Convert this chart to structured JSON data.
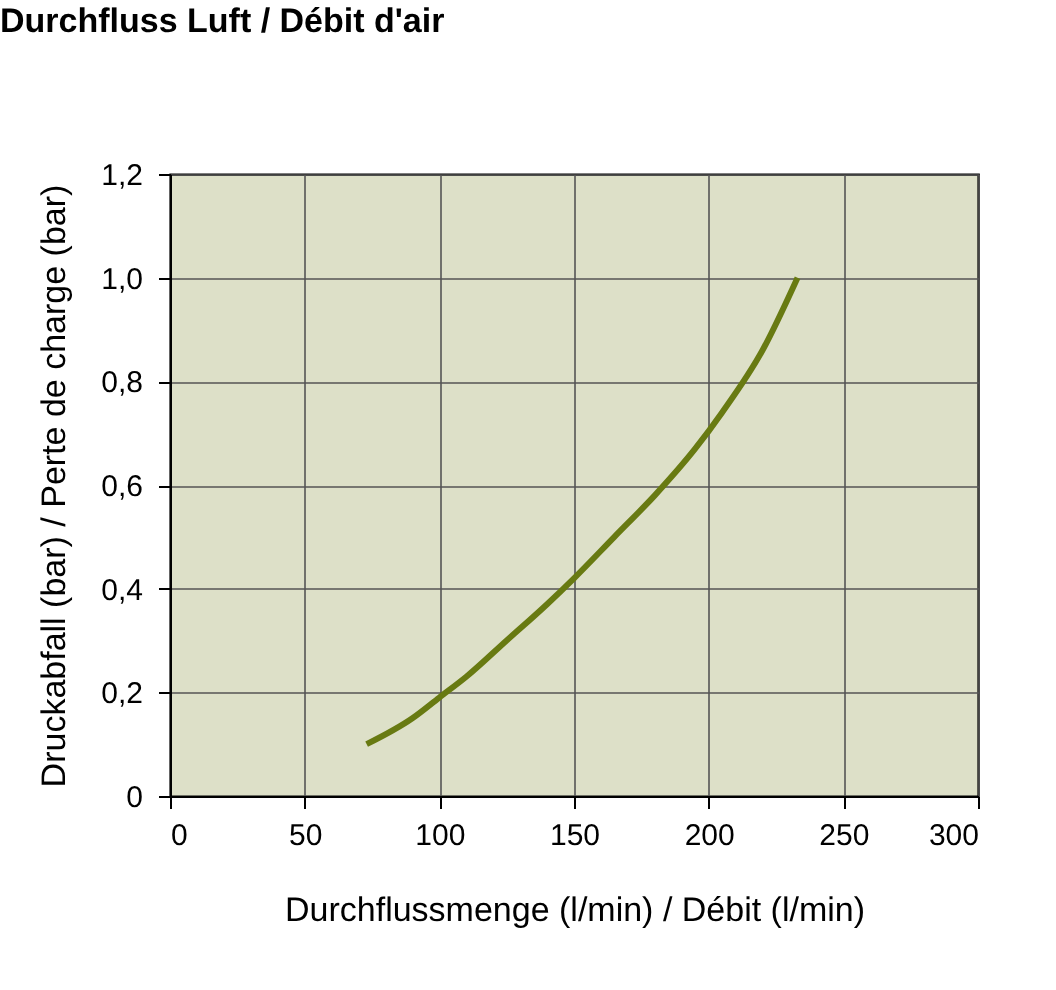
{
  "chart_data": {
    "type": "line",
    "title": "Durchfluss Luft / Débit d'air",
    "xlabel": "Durchflussmenge (l/min) / Débit (l/min)",
    "ylabel": "Druckabfall (bar) / Perte de charge (bar)",
    "series": [
      {
        "color": "#687a12",
        "x": [
          73,
          90,
          100,
          110,
          125,
          140,
          150,
          165,
          180,
          195,
          205,
          220,
          233
        ],
        "values": [
          0.1,
          0.15,
          0.19,
          0.23,
          0.3,
          0.37,
          0.42,
          0.5,
          0.58,
          0.67,
          0.74,
          0.86,
          1.0
        ]
      }
    ],
    "xlim": [
      0,
      300
    ],
    "xticks": [
      0,
      50,
      100,
      150,
      200,
      250,
      300
    ],
    "ylim": [
      0,
      1.2
    ],
    "yticks": [
      0,
      {
        "value": 0.2,
        "label": "0,2"
      },
      {
        "value": 0.4,
        "label": "0,4"
      },
      {
        "value": 0.6,
        "label": "0,6"
      },
      {
        "value": 0.8,
        "label": "0,8"
      },
      {
        "value": 1.0,
        "label": "1,0"
      },
      {
        "value": 1.2,
        "label": "1,2"
      }
    ],
    "grid": true,
    "line_style": "solid",
    "marker": "none"
  }
}
